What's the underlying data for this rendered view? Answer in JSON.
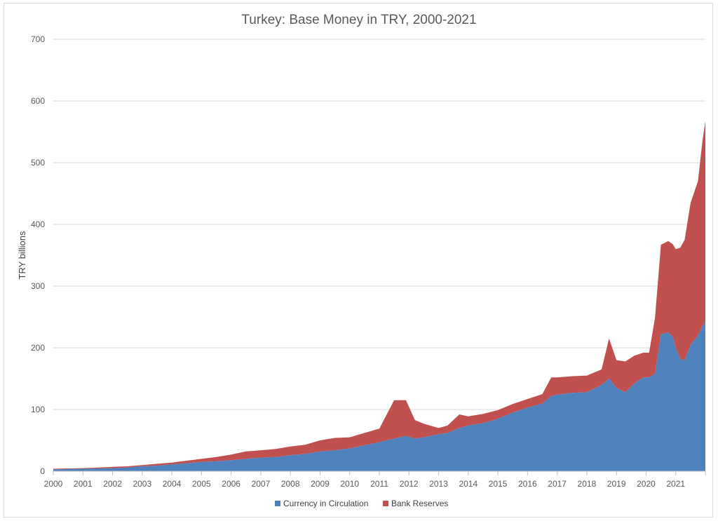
{
  "chart_data": {
    "type": "area",
    "stacked": true,
    "title": "Turkey: Base Money in TRY, 2000-2021",
    "xlabel": "",
    "ylabel": "TRY billions",
    "ylim": [
      0,
      700
    ],
    "yticks": [
      0,
      100,
      200,
      300,
      400,
      500,
      600,
      700
    ],
    "xlim": [
      2000,
      2022
    ],
    "xticks": [
      "2000",
      "2001",
      "2002",
      "2003",
      "2004",
      "2005",
      "2006",
      "2007",
      "2008",
      "2009",
      "2010",
      "2011",
      "2012",
      "2013",
      "2014",
      "2015",
      "2016",
      "2017",
      "2018",
      "2019",
      "2020",
      "2021"
    ],
    "grid": true,
    "legend_position": "bottom",
    "series": [
      {
        "name": "Currency in Circulation",
        "color": "#4f81bd",
        "points": [
          [
            2000.0,
            3
          ],
          [
            2000.5,
            3.5
          ],
          [
            2001.0,
            4
          ],
          [
            2001.5,
            4.5
          ],
          [
            2002.0,
            5
          ],
          [
            2002.5,
            6
          ],
          [
            2003.0,
            8
          ],
          [
            2003.5,
            9
          ],
          [
            2004.0,
            11
          ],
          [
            2004.5,
            13
          ],
          [
            2005.0,
            15
          ],
          [
            2005.5,
            16
          ],
          [
            2006.0,
            18
          ],
          [
            2006.5,
            20
          ],
          [
            2007.0,
            22
          ],
          [
            2007.5,
            23
          ],
          [
            2008.0,
            26
          ],
          [
            2008.5,
            28
          ],
          [
            2009.0,
            32
          ],
          [
            2009.5,
            34
          ],
          [
            2010.0,
            37
          ],
          [
            2010.5,
            42
          ],
          [
            2011.0,
            47
          ],
          [
            2011.5,
            53
          ],
          [
            2011.9,
            57
          ],
          [
            2012.2,
            53
          ],
          [
            2012.5,
            55
          ],
          [
            2013.0,
            60
          ],
          [
            2013.3,
            62
          ],
          [
            2013.7,
            70
          ],
          [
            2014.0,
            74
          ],
          [
            2014.5,
            78
          ],
          [
            2015.0,
            85
          ],
          [
            2015.5,
            95
          ],
          [
            2016.0,
            103
          ],
          [
            2016.5,
            110
          ],
          [
            2016.8,
            122
          ],
          [
            2017.0,
            124
          ],
          [
            2017.5,
            127
          ],
          [
            2018.0,
            128
          ],
          [
            2018.5,
            140
          ],
          [
            2018.75,
            150
          ],
          [
            2019.0,
            135
          ],
          [
            2019.3,
            128
          ],
          [
            2019.6,
            142
          ],
          [
            2019.9,
            152
          ],
          [
            2020.1,
            152
          ],
          [
            2020.3,
            158
          ],
          [
            2020.5,
            222
          ],
          [
            2020.75,
            225
          ],
          [
            2020.9,
            218
          ],
          [
            2021.0,
            200
          ],
          [
            2021.15,
            182
          ],
          [
            2021.3,
            180
          ],
          [
            2021.5,
            205
          ],
          [
            2021.75,
            220
          ],
          [
            2021.9,
            235
          ],
          [
            2022.0,
            245
          ]
        ]
      },
      {
        "name": "Bank Reserves",
        "color": "#c0504d",
        "points": [
          [
            2000.0,
            1
          ],
          [
            2000.5,
            1
          ],
          [
            2001.0,
            1
          ],
          [
            2001.5,
            1.5
          ],
          [
            2002.0,
            2
          ],
          [
            2002.5,
            2
          ],
          [
            2003.0,
            2
          ],
          [
            2003.5,
            3
          ],
          [
            2004.0,
            3
          ],
          [
            2004.5,
            4
          ],
          [
            2005.0,
            5
          ],
          [
            2005.5,
            7
          ],
          [
            2006.0,
            9
          ],
          [
            2006.5,
            12
          ],
          [
            2007.0,
            12
          ],
          [
            2007.5,
            13
          ],
          [
            2008.0,
            14
          ],
          [
            2008.5,
            15
          ],
          [
            2009.0,
            18
          ],
          [
            2009.5,
            20
          ],
          [
            2010.0,
            18
          ],
          [
            2010.5,
            20
          ],
          [
            2011.0,
            22
          ],
          [
            2011.5,
            62
          ],
          [
            2011.9,
            58
          ],
          [
            2012.2,
            30
          ],
          [
            2012.5,
            22
          ],
          [
            2013.0,
            10
          ],
          [
            2013.3,
            12
          ],
          [
            2013.7,
            22
          ],
          [
            2014.0,
            15
          ],
          [
            2014.5,
            15
          ],
          [
            2015.0,
            14
          ],
          [
            2015.5,
            14
          ],
          [
            2016.0,
            14
          ],
          [
            2016.5,
            15
          ],
          [
            2016.8,
            30
          ],
          [
            2017.0,
            28
          ],
          [
            2017.5,
            27
          ],
          [
            2018.0,
            27
          ],
          [
            2018.5,
            25
          ],
          [
            2018.75,
            65
          ],
          [
            2019.0,
            45
          ],
          [
            2019.3,
            50
          ],
          [
            2019.6,
            45
          ],
          [
            2019.9,
            40
          ],
          [
            2020.1,
            40
          ],
          [
            2020.3,
            90
          ],
          [
            2020.5,
            145
          ],
          [
            2020.75,
            148
          ],
          [
            2020.9,
            150
          ],
          [
            2021.0,
            160
          ],
          [
            2021.15,
            180
          ],
          [
            2021.3,
            195
          ],
          [
            2021.5,
            230
          ],
          [
            2021.75,
            250
          ],
          [
            2021.9,
            300
          ],
          [
            2022.0,
            322
          ]
        ]
      }
    ]
  }
}
